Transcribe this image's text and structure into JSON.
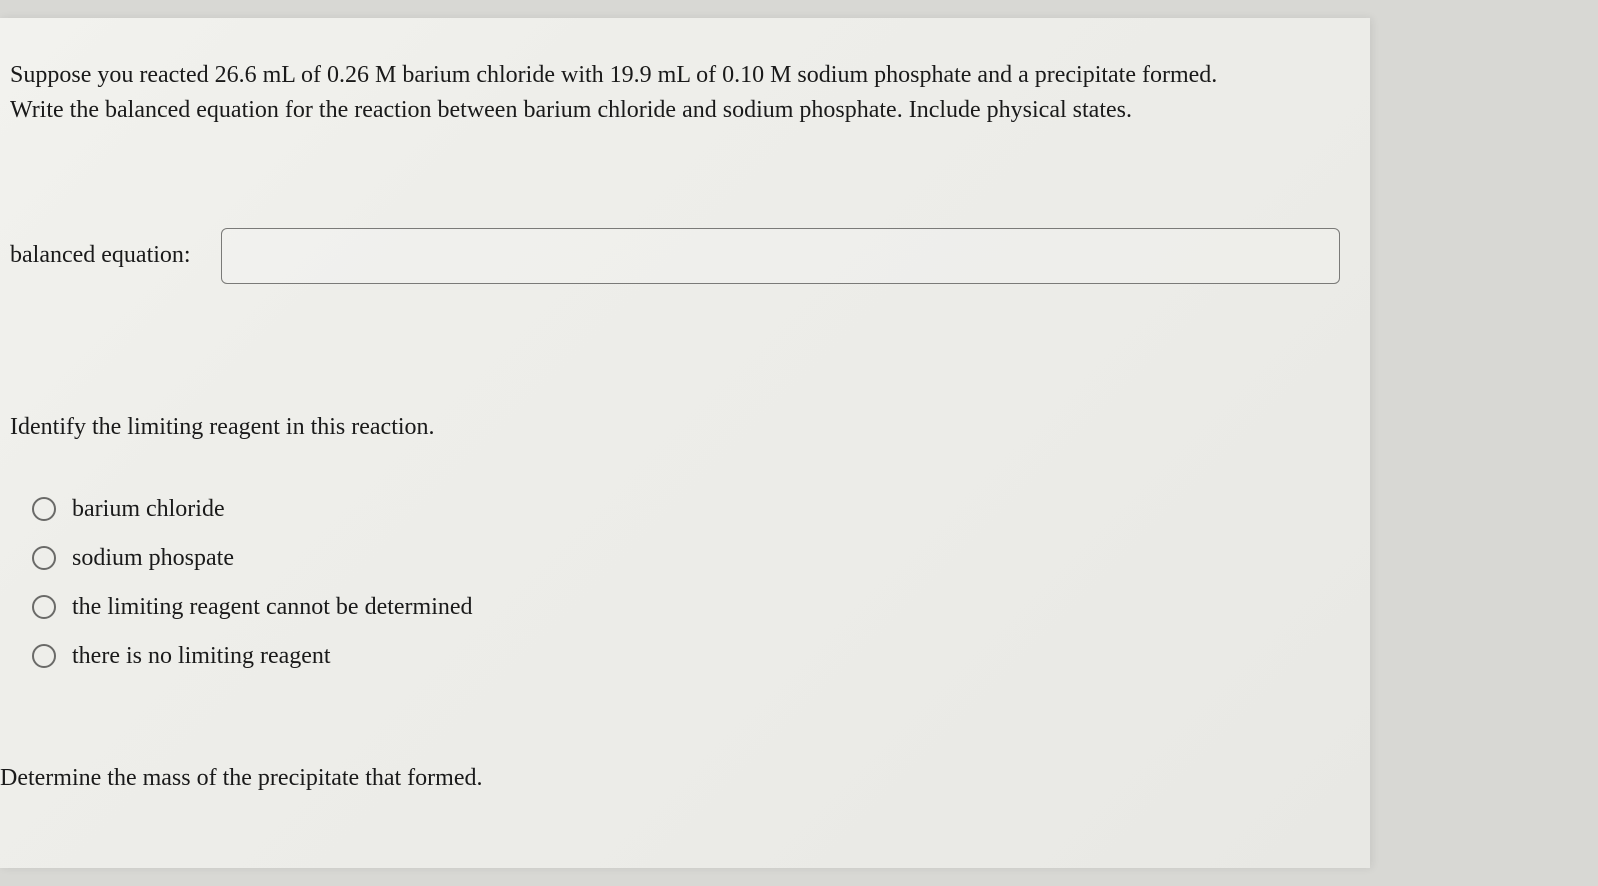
{
  "page": {
    "background_color": "#ededea",
    "text_color": "#1a1a1a",
    "font_family": "Georgia, Times New Roman, serif",
    "body_fontsize": 24
  },
  "intro": {
    "line1": "Suppose you reacted 26.6 mL of 0.26 M barium chloride with 19.9 mL of 0.10 M sodium phosphate and a precipitate formed.",
    "line2": "Write the balanced equation for the reaction between barium chloride and sodium phosphate. Include physical states."
  },
  "equation": {
    "label": "balanced equation:",
    "value": "",
    "placeholder": "",
    "input_border_color": "#7a7a78",
    "input_height": 56,
    "input_border_radius": 6
  },
  "q2": {
    "prompt": "Identify the limiting reagent in this reaction.",
    "options": [
      {
        "label": "barium chloride",
        "selected": false
      },
      {
        "label": "sodium phospate",
        "selected": false
      },
      {
        "label": "the limiting reagent cannot be determined",
        "selected": false
      },
      {
        "label": "there is no limiting reagent",
        "selected": false
      }
    ],
    "radio_border_color": "#6a6a68",
    "radio_size": 24
  },
  "q3": {
    "prompt": "Determine the mass of the precipitate that formed."
  }
}
